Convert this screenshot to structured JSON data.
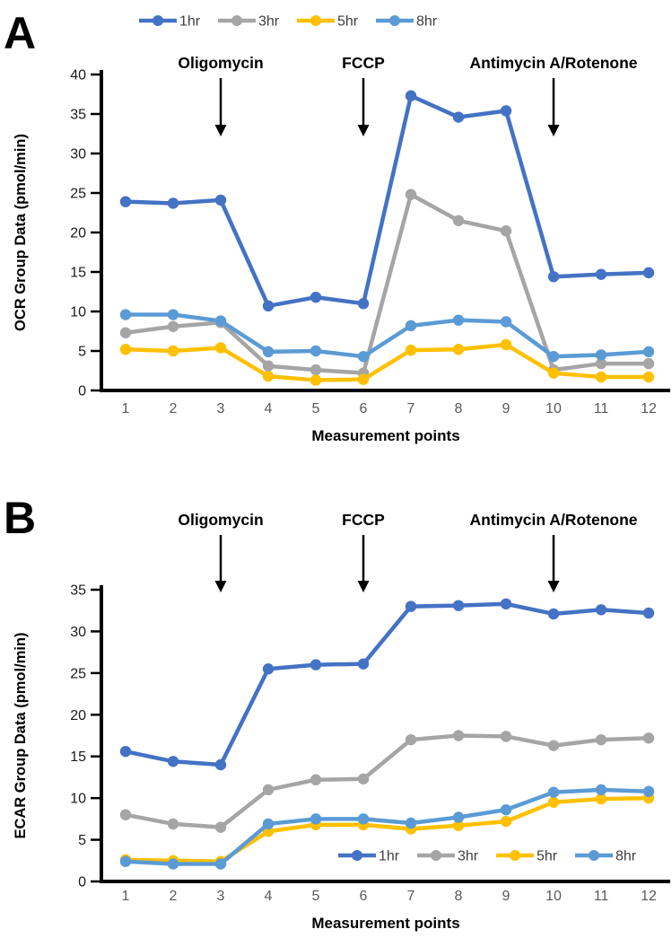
{
  "chart_data": [
    {
      "type": "line",
      "panel_label": "A",
      "title": "",
      "xlabel": "Measurement points",
      "ylabel": "OCR Group Data (pmol/min)",
      "x": [
        1,
        2,
        3,
        4,
        5,
        6,
        7,
        8,
        9,
        10,
        11,
        12
      ],
      "ylim": [
        0,
        40
      ],
      "ytick_step": 5,
      "grid": false,
      "legend_position": "top-center",
      "annotations": [
        {
          "text": "Oligomycin",
          "at_x": 3
        },
        {
          "text": "FCCP",
          "at_x": 6
        },
        {
          "text": "Antimycin A/Rotenone",
          "at_x": 10
        }
      ],
      "series": [
        {
          "name": "1hr",
          "color": "#4472C4",
          "values": [
            23.9,
            23.7,
            24.1,
            10.7,
            11.8,
            11.0,
            37.3,
            34.6,
            35.4,
            14.4,
            14.7,
            14.9
          ]
        },
        {
          "name": "3hr",
          "color": "#A5A5A5",
          "values": [
            7.3,
            8.1,
            8.6,
            3.1,
            2.6,
            2.2,
            24.8,
            21.5,
            20.2,
            2.6,
            3.4,
            3.4
          ]
        },
        {
          "name": "5hr",
          "color": "#FFC000",
          "values": [
            5.2,
            5.0,
            5.4,
            1.8,
            1.3,
            1.4,
            5.1,
            5.2,
            5.8,
            2.2,
            1.7,
            1.7
          ]
        },
        {
          "name": "8hr",
          "color": "#5B9BD5",
          "values": [
            9.6,
            9.6,
            8.8,
            4.9,
            5.0,
            4.3,
            8.2,
            8.9,
            8.7,
            4.3,
            4.5,
            4.9
          ]
        }
      ]
    },
    {
      "type": "line",
      "panel_label": "B",
      "title": "",
      "xlabel": "Measurement points",
      "ylabel": "ECAR Group Data (pmol/min)",
      "x": [
        1,
        2,
        3,
        4,
        5,
        6,
        7,
        8,
        9,
        10,
        11,
        12
      ],
      "ylim": [
        0,
        35
      ],
      "ytick_step": 5,
      "grid": false,
      "legend_position": "inside-bottom-right",
      "annotations": [
        {
          "text": "Oligomycin",
          "at_x": 3
        },
        {
          "text": "FCCP",
          "at_x": 6
        },
        {
          "text": "Antimycin A/Rotenone",
          "at_x": 10
        }
      ],
      "series": [
        {
          "name": "1hr",
          "color": "#4472C4",
          "values": [
            15.6,
            14.4,
            14.0,
            25.5,
            26.0,
            26.1,
            33.0,
            33.1,
            33.3,
            32.1,
            32.6,
            32.2
          ]
        },
        {
          "name": "3hr",
          "color": "#A5A5A5",
          "values": [
            8.0,
            6.9,
            6.5,
            11.0,
            12.2,
            12.3,
            17.0,
            17.5,
            17.4,
            16.3,
            17.0,
            17.2
          ]
        },
        {
          "name": "5hr",
          "color": "#FFC000",
          "values": [
            2.6,
            2.5,
            2.4,
            6.0,
            6.8,
            6.8,
            6.3,
            6.7,
            7.2,
            9.5,
            9.9,
            10.0
          ]
        },
        {
          "name": "8hr",
          "color": "#5B9BD5",
          "values": [
            2.4,
            2.1,
            2.1,
            6.9,
            7.5,
            7.5,
            7.0,
            7.7,
            8.6,
            10.7,
            11.0,
            10.8
          ]
        }
      ]
    }
  ],
  "style_colors": {
    "axis": "#000000",
    "x_tick_label": "#595959",
    "y_tick_label": "#1a1a1a",
    "legend_text": "#3f3f3f",
    "annotation_text": "#000000"
  }
}
